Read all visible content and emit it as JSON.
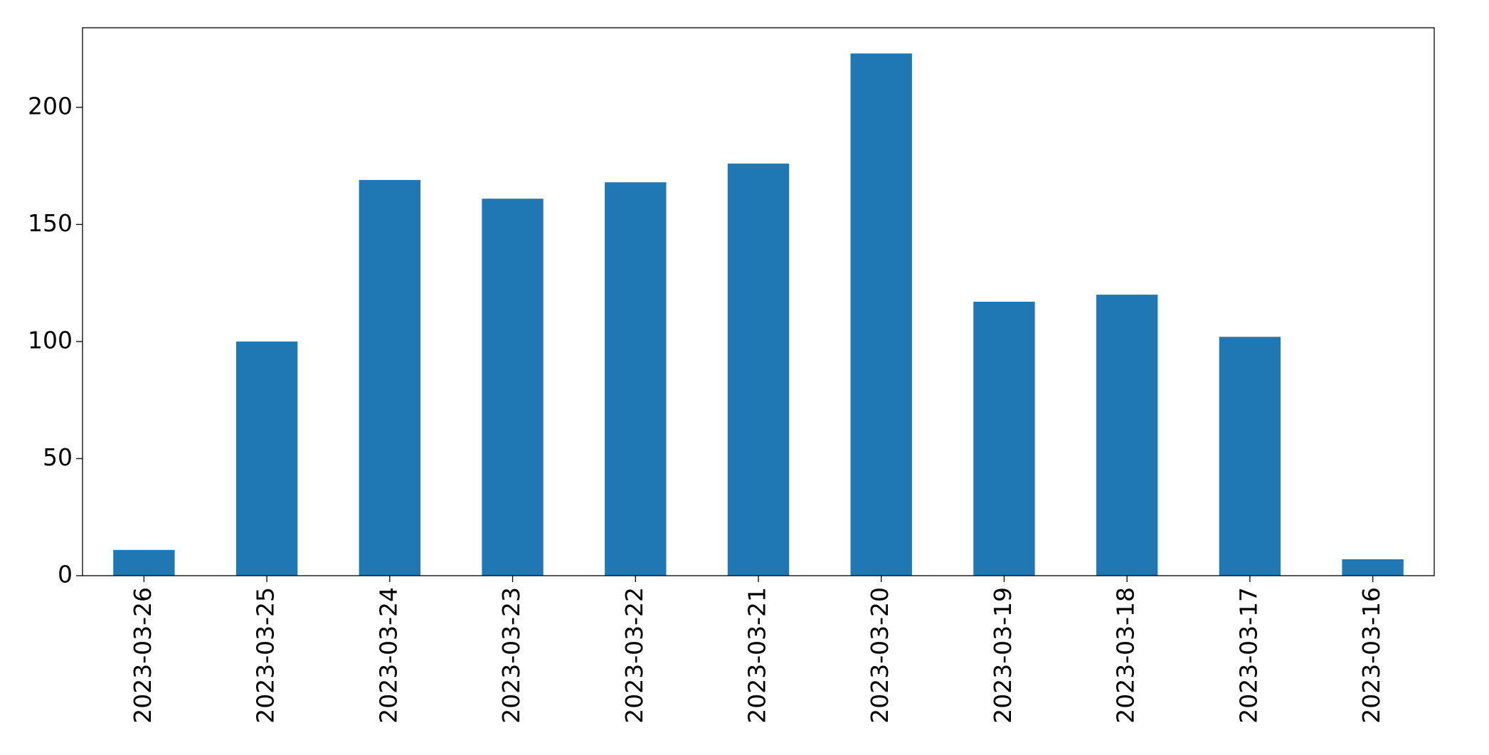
{
  "chart_data": {
    "type": "bar",
    "categories": [
      "2023-03-26",
      "2023-03-25",
      "2023-03-24",
      "2023-03-23",
      "2023-03-22",
      "2023-03-21",
      "2023-03-20",
      "2023-03-19",
      "2023-03-18",
      "2023-03-17",
      "2023-03-16"
    ],
    "values": [
      11,
      100,
      169,
      161,
      168,
      176,
      223,
      117,
      120,
      102,
      7
    ],
    "color": "#1f77b4",
    "ylim": [
      0,
      234
    ],
    "yticks": [
      0,
      50,
      100,
      150,
      200
    ],
    "grid": false
  }
}
